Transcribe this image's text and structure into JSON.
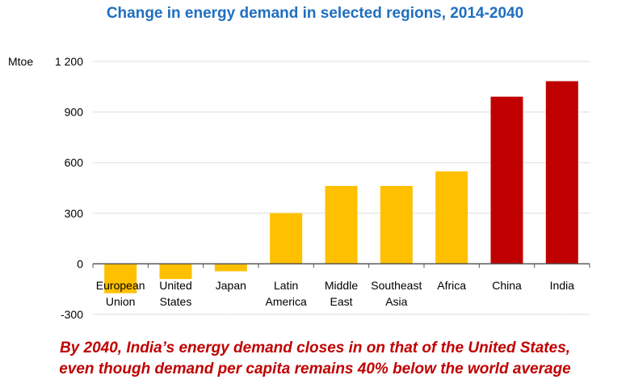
{
  "chart_data": {
    "type": "bar",
    "title": "Change in energy demand in selected regions, 2014-2040",
    "ylabel": "Mtoe",
    "categories": [
      [
        "European",
        "Union"
      ],
      [
        "United",
        "States"
      ],
      [
        "Japan"
      ],
      [
        "Latin",
        "America"
      ],
      [
        "Middle",
        "East"
      ],
      [
        "Southeast",
        "Asia"
      ],
      [
        "Africa"
      ],
      [
        "China"
      ],
      [
        "India"
      ]
    ],
    "values": [
      -174,
      -90,
      -44,
      301,
      462,
      462,
      548,
      991,
      1083
    ],
    "colors": [
      "#ffc000",
      "#ffc000",
      "#ffc000",
      "#ffc000",
      "#ffc000",
      "#ffc000",
      "#ffc000",
      "#c00000",
      "#c00000"
    ],
    "ylim": [
      -300,
      1200
    ],
    "yticks": [
      -300,
      0,
      300,
      600,
      900,
      1200
    ],
    "ytick_labels": [
      "-300",
      "0",
      "300",
      "600",
      "900",
      "1 200"
    ],
    "grid": true
  },
  "caption": {
    "line1": "By 2040, India’s energy demand closes in on that of the United States,",
    "line2": "even though demand per capita remains 40% below the world average"
  }
}
